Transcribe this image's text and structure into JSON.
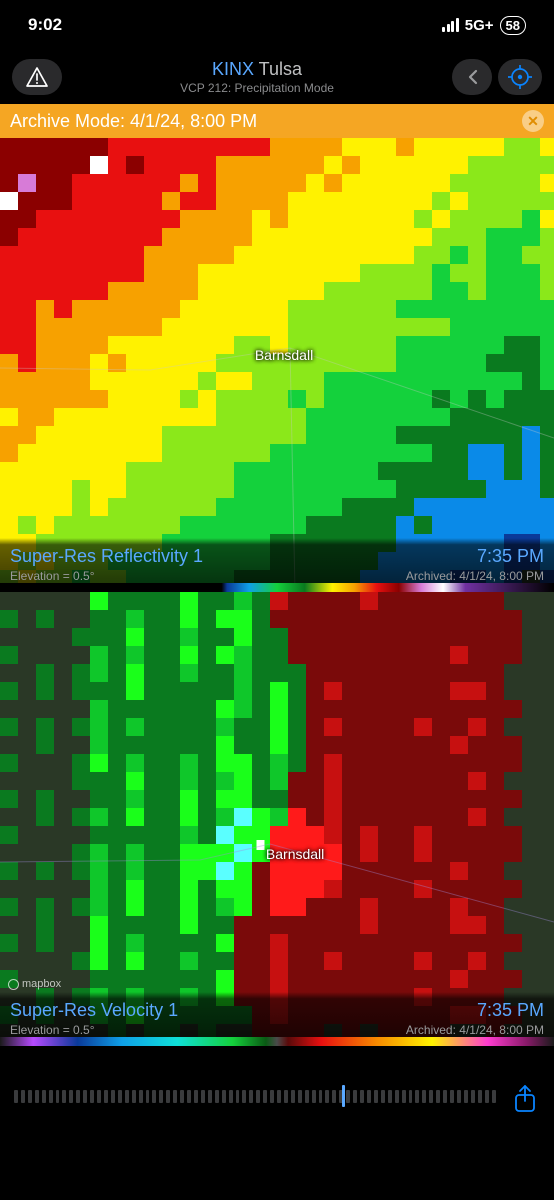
{
  "status": {
    "time": "9:02",
    "network": "5G+",
    "battery": "58"
  },
  "header": {
    "station_code": "KINX",
    "station_city": "Tulsa",
    "subtitle": "VCP 212: Precipitation Mode"
  },
  "archive": {
    "label": "Archive Mode: 4/1/24, 8:00 PM"
  },
  "panels": [
    {
      "city_label": "Barnsdall",
      "city_pos": {
        "left_pct": 46,
        "top_pct": 46
      },
      "title": "Super-Res Reflectivity 1",
      "time": "7:35 PM",
      "elevation": "Elevation = 0.5°",
      "archived": "Archived: 4/1/24, 8:00 PM",
      "scale_stops": [
        {
          "p": 0,
          "c": "#000000"
        },
        {
          "p": 40,
          "c": "#000000"
        },
        {
          "p": 41,
          "c": "#0a3a99"
        },
        {
          "p": 45,
          "c": "#0fa0e8"
        },
        {
          "p": 50,
          "c": "#14d13c"
        },
        {
          "p": 55,
          "c": "#0a7a1f"
        },
        {
          "p": 60,
          "c": "#fff200"
        },
        {
          "p": 64,
          "c": "#f7a100"
        },
        {
          "p": 68,
          "c": "#e81010"
        },
        {
          "p": 72,
          "c": "#8b0000"
        },
        {
          "p": 76,
          "c": "#d77bd7"
        },
        {
          "p": 80,
          "c": "#ffffff"
        },
        {
          "p": 84,
          "c": "#7030a0"
        },
        {
          "p": 100,
          "c": "#000000"
        }
      ]
    },
    {
      "city_label": "Barnsdall",
      "city_pos": {
        "left_pct": 48,
        "top_pct": 56
      },
      "title": "Super-Res Velocity 1",
      "time": "7:35 PM",
      "elevation": "Elevation = 0.5°",
      "archived": "Archived: 4/1/24, 8:00 PM",
      "scale_stops": [
        {
          "p": 0,
          "c": "#1a1a1a"
        },
        {
          "p": 6,
          "c": "#b74aff"
        },
        {
          "p": 14,
          "c": "#0a3a99"
        },
        {
          "p": 22,
          "c": "#0fa0e8"
        },
        {
          "p": 32,
          "c": "#0fe0d8"
        },
        {
          "p": 42,
          "c": "#14d13c"
        },
        {
          "p": 48,
          "c": "#0a5a14"
        },
        {
          "p": 50,
          "c": "#4a4a4a"
        },
        {
          "p": 52,
          "c": "#5a0a0a"
        },
        {
          "p": 58,
          "c": "#e81010"
        },
        {
          "p": 68,
          "c": "#f78a00"
        },
        {
          "p": 78,
          "c": "#fff200"
        },
        {
          "p": 88,
          "c": "#ff3cd0"
        },
        {
          "p": 95,
          "c": "#8a1a6a"
        },
        {
          "p": 100,
          "c": "#1a1a1a"
        }
      ]
    }
  ],
  "radar_colors": {
    "dark_red": "#8b0000",
    "red": "#e81010",
    "orange": "#f7a100",
    "yellow": "#fff200",
    "lime": "#8be81a",
    "green": "#14d13c",
    "dark_green": "#0a7a1f",
    "blue": "#0a8ae8",
    "navy": "#0a3a99",
    "cyan": "#0fe0d8",
    "white": "#ffffff",
    "pink": "#d77bd7",
    "vel_green_bright": "#1aff1a",
    "vel_green": "#0fc72a",
    "vel_green_dark": "#0a7a1f",
    "vel_cyan": "#5affff",
    "vel_red_dark": "#7a0a0a",
    "vel_red": "#c71010",
    "vel_red_bright": "#ff1a1a",
    "terrain": "#2a3826"
  },
  "icons": {
    "share_color": "#0a84ff",
    "target_color": "#0a84ff"
  }
}
